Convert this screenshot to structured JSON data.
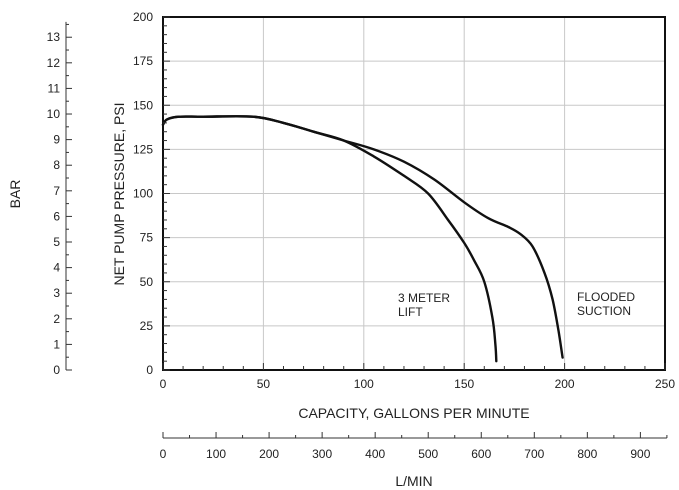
{
  "chart_data": {
    "type": "line",
    "xlabel": "CAPACITY, GALLONS PER MINUTE",
    "ylabel": "NET PUMP PRESSURE, PSI",
    "xlim": [
      0,
      250
    ],
    "ylim": [
      0,
      200
    ],
    "x_ticks": [
      "0",
      "50",
      "100",
      "150",
      "200",
      "250"
    ],
    "y_ticks": [
      "0",
      "25",
      "50",
      "75",
      "100",
      "125",
      "150",
      "175",
      "200"
    ],
    "grid": true,
    "secondary_y": {
      "label": "BAR",
      "lim": [
        0,
        13.79
      ],
      "ticks": [
        "0",
        "1",
        "2",
        "3",
        "4",
        "5",
        "6",
        "7",
        "8",
        "9",
        "10",
        "11",
        "12",
        "13"
      ]
    },
    "secondary_x": {
      "label": "L/MIN",
      "lim": [
        0,
        946.4
      ],
      "ticks": [
        "0",
        "100",
        "200",
        "300",
        "400",
        "500",
        "600",
        "700",
        "800",
        "900"
      ]
    },
    "series": [
      {
        "annotation": [
          "3 METER",
          "LIFT"
        ],
        "x": [
          0,
          2,
          8,
          20,
          45,
          60,
          75,
          90,
          105,
          120,
          132,
          142,
          150,
          155,
          160,
          164,
          165.5,
          166
        ],
        "y": [
          139,
          142,
          143.5,
          143.5,
          143.5,
          140,
          135,
          130,
          121,
          110,
          100,
          85,
          72,
          62,
          50,
          30,
          15,
          5
        ]
      },
      {
        "annotation": [
          "FLOODED",
          "SUCTION"
        ],
        "x": [
          0,
          2,
          8,
          20,
          45,
          60,
          75,
          90,
          105,
          120,
          135,
          150,
          162,
          172,
          178,
          184,
          190,
          194,
          197,
          199
        ],
        "y": [
          139,
          142,
          143.5,
          143.5,
          143.5,
          140,
          135,
          130,
          125,
          118,
          108,
          95,
          86,
          81,
          77,
          70,
          55,
          40,
          22,
          7
        ]
      }
    ]
  }
}
